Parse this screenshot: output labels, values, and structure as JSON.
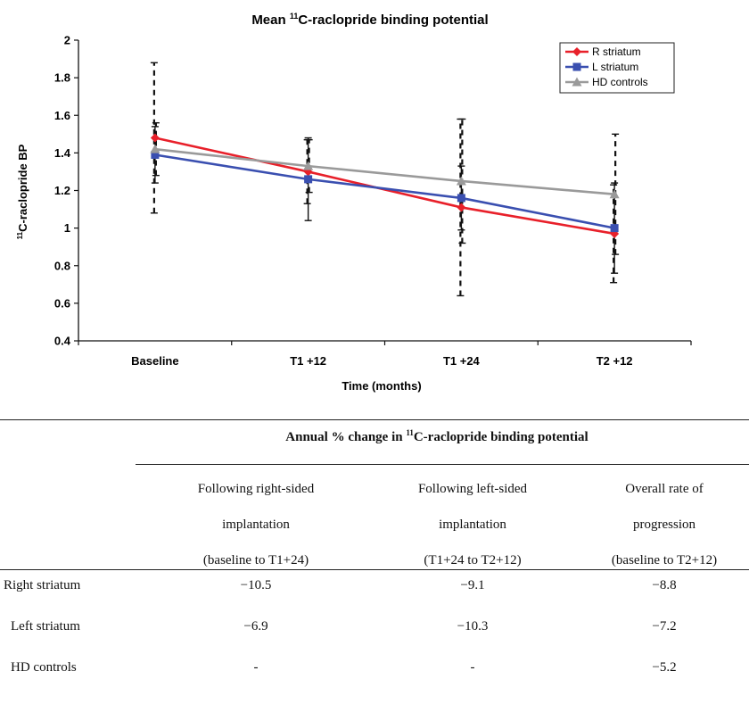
{
  "chart_data": {
    "type": "line",
    "title_prefix": "Mean ",
    "title_sup": "11",
    "title_suffix": "C-raclopride binding potential",
    "xlabel": "Time (months)",
    "ylabel_sup": "11",
    "ylabel_suffix": "C-raclopride BP",
    "categories": [
      "Baseline",
      "T1 +12",
      "T1 +24",
      "T2 +12"
    ],
    "ylim": [
      0.4,
      2
    ],
    "yticks": [
      "0.4",
      "0.6",
      "0.8",
      "1",
      "1.2",
      "1.4",
      "1.6",
      "1.8",
      "2"
    ],
    "grid": false,
    "legend_position": "top-right",
    "series": [
      {
        "name": "R striatum",
        "color": "#e8202a",
        "marker": "diamond",
        "values": [
          1.48,
          1.3,
          1.11,
          0.97
        ],
        "err": [
          0.4,
          0.17,
          0.47,
          0.26
        ]
      },
      {
        "name": "L striatum",
        "color": "#3a4fb0",
        "marker": "square",
        "values": [
          1.39,
          1.26,
          1.16,
          1.0
        ],
        "err": [
          0.15,
          0.22,
          0.17,
          0.24
        ]
      },
      {
        "name": "HD controls",
        "color": "#9a9a9a",
        "marker": "triangle",
        "values": [
          1.42,
          1.33,
          1.25,
          1.18
        ],
        "err": [
          0.14,
          0.14,
          0.33,
          0.32
        ]
      }
    ]
  },
  "table": {
    "title_prefix": "Annual % change in ",
    "title_sup": "11",
    "title_suffix": "C-raclopride binding potential",
    "columns": [
      {
        "line1": "Following right-sided",
        "line2": "implantation",
        "line3": "(baseline to T1+24)"
      },
      {
        "line1": "Following left-sided",
        "line2": "implantation",
        "line3": "(T1+24 to T2+12)"
      },
      {
        "line1": "Overall rate of",
        "line2": "progression",
        "line3": "(baseline to T2+12)"
      }
    ],
    "rows": [
      {
        "label": "Right striatum",
        "values": [
          "−10.5",
          "−9.1",
          "−8.8"
        ]
      },
      {
        "label": "Left striatum",
        "values": [
          "−6.9",
          "−10.3",
          "−7.2"
        ]
      },
      {
        "label": "HD controls",
        "values": [
          "-",
          "-",
          "−5.2"
        ]
      }
    ]
  }
}
